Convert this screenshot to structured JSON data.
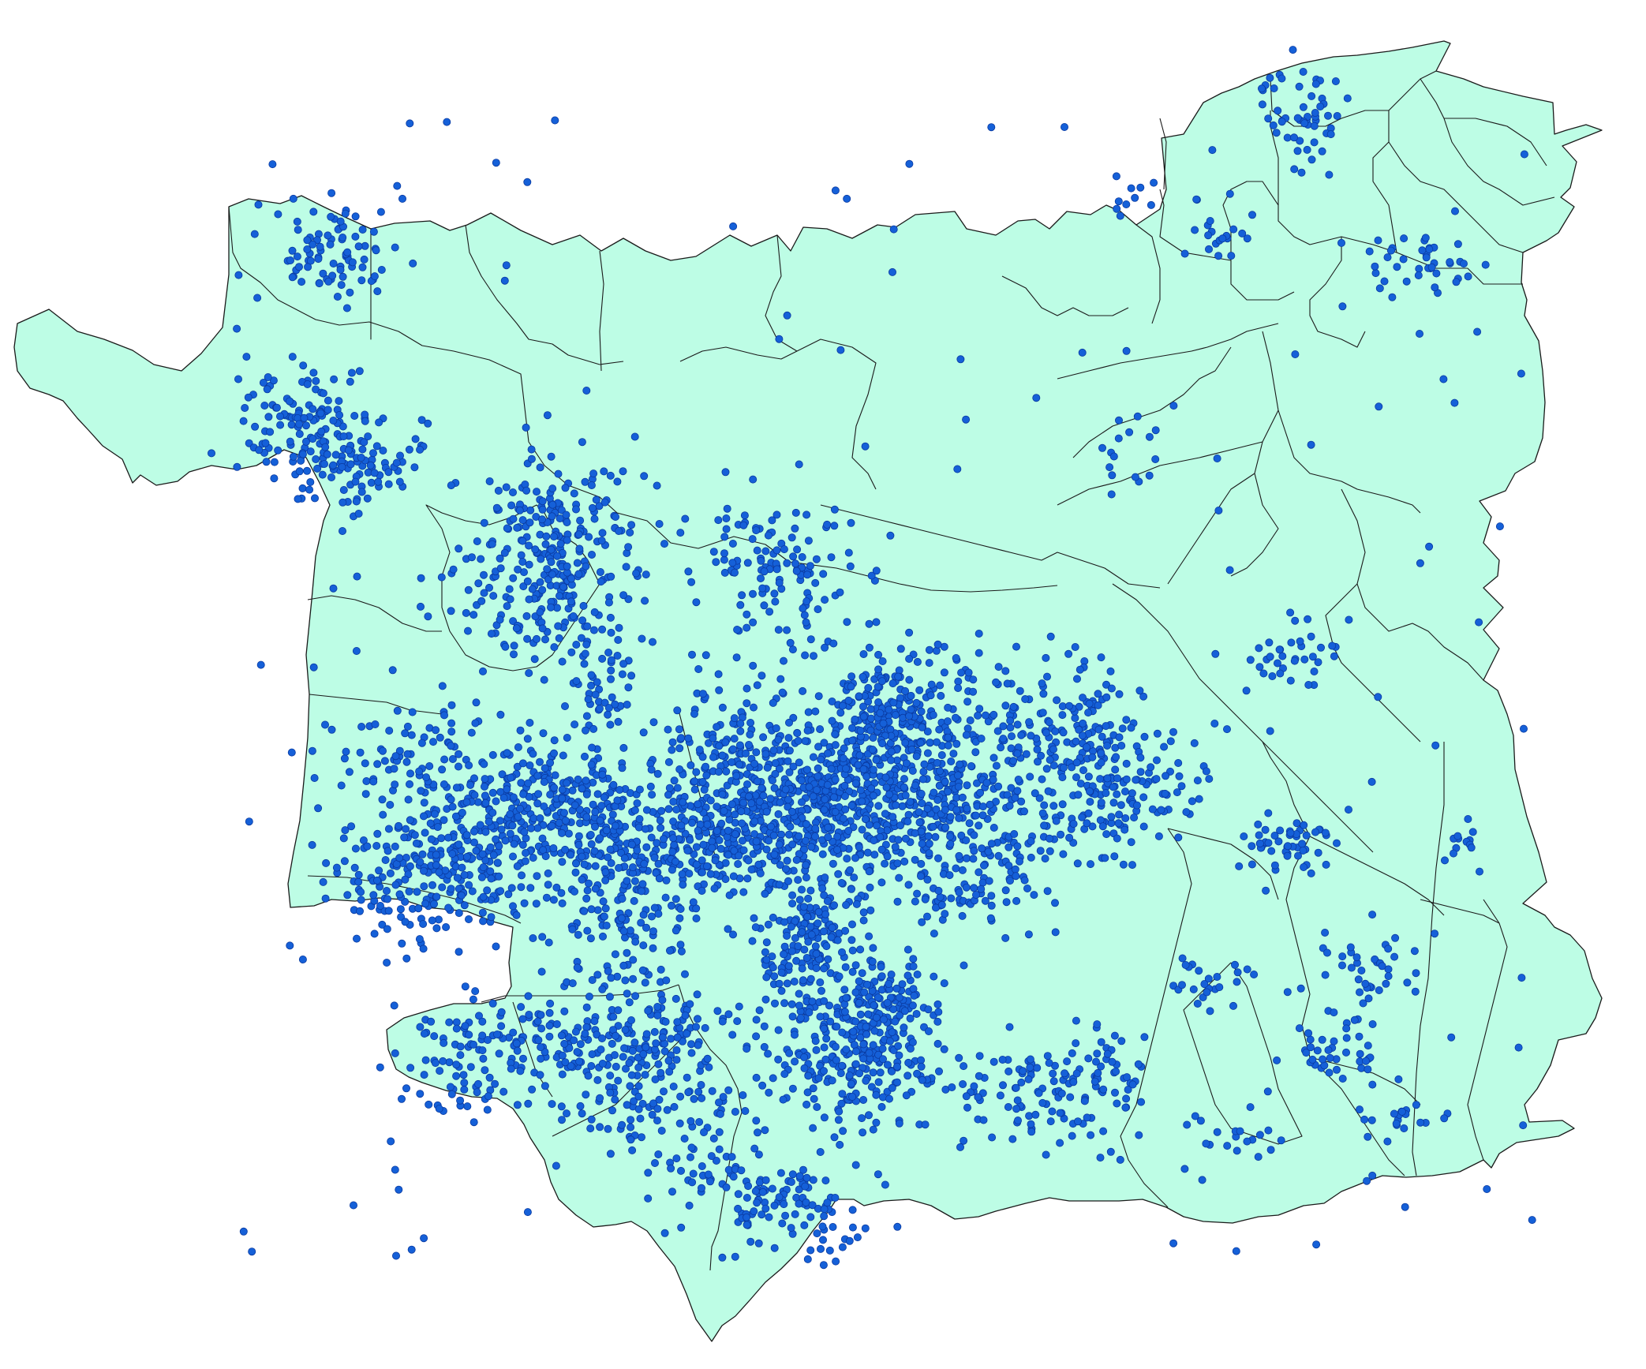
{
  "map": {
    "land_color": "#bdfde5",
    "outline_color": "#1a1a1a",
    "point_color": "#1560d8",
    "point_stroke": "#0a3aa0",
    "background": "#ffffff"
  }
}
